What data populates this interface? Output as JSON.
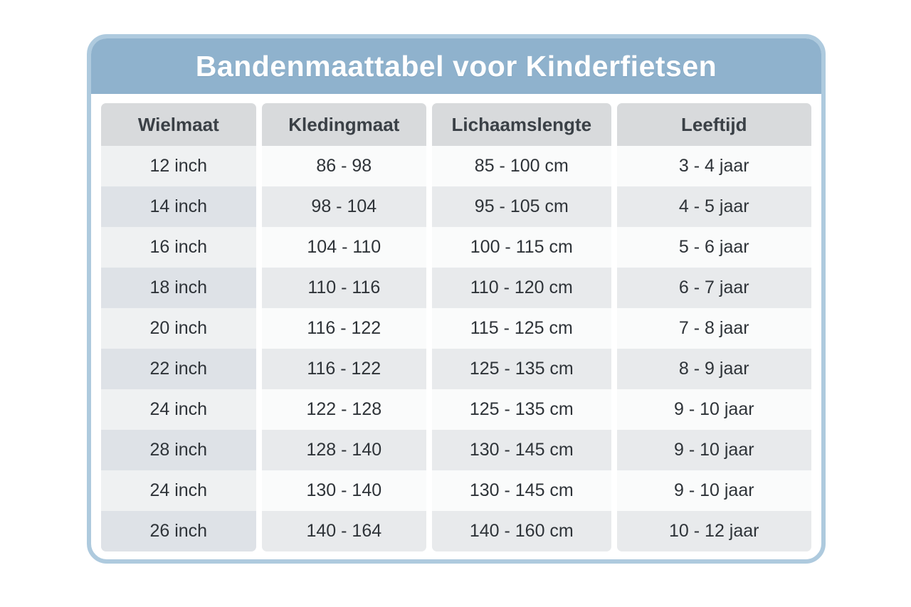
{
  "title": "Bandenmaattabel voor Kinderfietsen",
  "table": {
    "headers": [
      "Wielmaat",
      "Kledingmaat",
      "Lichaamslengte",
      "Leeftijd"
    ],
    "rows": [
      [
        "12 inch",
        "86 - 98",
        "85 - 100 cm",
        "3 - 4 jaar"
      ],
      [
        "14 inch",
        "98 - 104",
        "95 - 105 cm",
        "4 - 5 jaar"
      ],
      [
        "16 inch",
        "104 - 110",
        "100 - 115 cm",
        "5 - 6 jaar"
      ],
      [
        "18 inch",
        "110 - 116",
        "110 - 120 cm",
        "6 - 7 jaar"
      ],
      [
        "20 inch",
        "116 - 122",
        "115 - 125 cm",
        "7 - 8 jaar"
      ],
      [
        "22 inch",
        "116 - 122",
        "125 - 135 cm",
        "8 - 9 jaar"
      ],
      [
        "24 inch",
        "122 - 128",
        "125 - 135 cm",
        "9 - 10 jaar"
      ],
      [
        "28 inch",
        "128 - 140",
        "130 - 145 cm",
        "9 - 10 jaar"
      ],
      [
        "24 inch",
        "130 - 140",
        "130 - 145 cm",
        "9 - 10 jaar"
      ],
      [
        "26 inch",
        "140 - 164",
        "140 - 160 cm",
        "10 - 12 jaar"
      ]
    ]
  },
  "colors": {
    "card_border": "#aecade",
    "header_band": "#8fb2cd",
    "title_text": "#ffffff",
    "header_cell_bg": "#d8dadc",
    "header_text": "#3a4046",
    "row_odd_first": "#eff1f2",
    "row_odd_rest": "#fafbfb",
    "row_even_first": "#dee2e7",
    "row_even_rest": "#e8eaec",
    "cell_text": "#2e3338"
  }
}
